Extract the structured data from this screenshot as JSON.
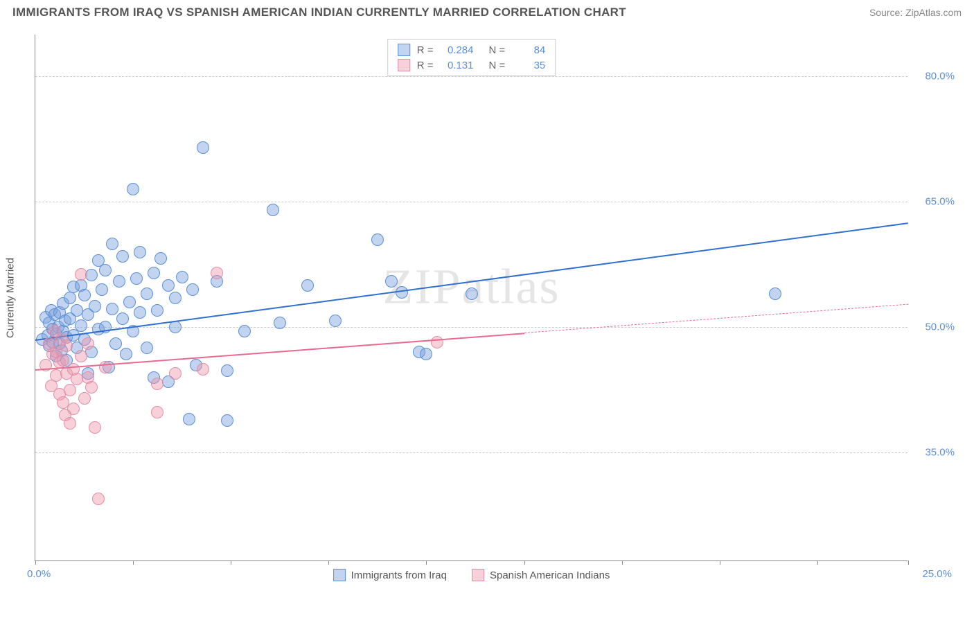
{
  "title": "IMMIGRANTS FROM IRAQ VS SPANISH AMERICAN INDIAN CURRENTLY MARRIED CORRELATION CHART",
  "source": "Source: ZipAtlas.com",
  "watermark": "ZIPatlas",
  "chart": {
    "type": "scatter",
    "background_color": "#ffffff",
    "grid_color": "#cccccc",
    "axis_color": "#888888",
    "y_axis_title": "Currently Married",
    "xlim": [
      0,
      25
    ],
    "ylim": [
      22,
      85
    ],
    "y_ticks": [
      {
        "v": 35.0,
        "label": "35.0%"
      },
      {
        "v": 50.0,
        "label": "50.0%"
      },
      {
        "v": 65.0,
        "label": "65.0%"
      },
      {
        "v": 80.0,
        "label": "80.0%"
      }
    ],
    "x_ticks": [
      0,
      2.8,
      5.6,
      8.4,
      11.2,
      14.0,
      16.8,
      19.6,
      22.4,
      25.0
    ],
    "x_origin_label": "0.0%",
    "x_max_label": "25.0%",
    "label_fontsize": 15,
    "label_color": "#5b8fd6",
    "point_radius": 9,
    "series": [
      {
        "id": "iraq",
        "name": "Immigrants from Iraq",
        "fill": "rgba(120,160,220,0.45)",
        "stroke": "#5b8fd6",
        "trend_color": "#2f6fcf",
        "trend_width": 2.5,
        "trend_dash": "solid",
        "trend_line": {
          "x1": 0,
          "y1": 48.5,
          "x2": 25,
          "y2": 62.5
        },
        "r_value": "0.284",
        "n_value": "84",
        "points": [
          [
            0.2,
            48.5
          ],
          [
            0.3,
            51.2
          ],
          [
            0.35,
            49.0
          ],
          [
            0.4,
            47.8
          ],
          [
            0.4,
            50.5
          ],
          [
            0.45,
            52.0
          ],
          [
            0.5,
            48.2
          ],
          [
            0.5,
            49.8
          ],
          [
            0.55,
            51.5
          ],
          [
            0.6,
            46.5
          ],
          [
            0.6,
            49.2
          ],
          [
            0.65,
            50.0
          ],
          [
            0.7,
            48.0
          ],
          [
            0.7,
            51.8
          ],
          [
            0.75,
            47.2
          ],
          [
            0.8,
            49.5
          ],
          [
            0.8,
            52.8
          ],
          [
            0.85,
            50.8
          ],
          [
            0.9,
            48.8
          ],
          [
            0.9,
            46.0
          ],
          [
            1.0,
            51.0
          ],
          [
            1.0,
            53.5
          ],
          [
            1.1,
            49.0
          ],
          [
            1.1,
            54.8
          ],
          [
            1.2,
            47.5
          ],
          [
            1.2,
            52.0
          ],
          [
            1.3,
            50.2
          ],
          [
            1.3,
            55.0
          ],
          [
            1.4,
            48.5
          ],
          [
            1.4,
            53.8
          ],
          [
            1.5,
            51.5
          ],
          [
            1.5,
            44.5
          ],
          [
            1.6,
            56.2
          ],
          [
            1.6,
            47.0
          ],
          [
            1.7,
            52.5
          ],
          [
            1.8,
            49.8
          ],
          [
            1.8,
            58.0
          ],
          [
            1.9,
            54.5
          ],
          [
            2.0,
            50.0
          ],
          [
            2.0,
            56.8
          ],
          [
            2.1,
            45.2
          ],
          [
            2.2,
            60.0
          ],
          [
            2.2,
            52.2
          ],
          [
            2.3,
            48.0
          ],
          [
            2.4,
            55.5
          ],
          [
            2.5,
            51.0
          ],
          [
            2.5,
            58.5
          ],
          [
            2.6,
            46.8
          ],
          [
            2.7,
            53.0
          ],
          [
            2.8,
            66.5
          ],
          [
            2.8,
            49.5
          ],
          [
            2.9,
            55.8
          ],
          [
            3.0,
            51.8
          ],
          [
            3.0,
            59.0
          ],
          [
            3.2,
            54.0
          ],
          [
            3.2,
            47.5
          ],
          [
            3.4,
            56.5
          ],
          [
            3.4,
            44.0
          ],
          [
            3.5,
            52.0
          ],
          [
            3.6,
            58.2
          ],
          [
            3.8,
            55.0
          ],
          [
            3.8,
            43.5
          ],
          [
            4.0,
            53.5
          ],
          [
            4.0,
            50.0
          ],
          [
            4.2,
            56.0
          ],
          [
            4.4,
            39.0
          ],
          [
            4.5,
            54.5
          ],
          [
            4.6,
            45.5
          ],
          [
            4.8,
            71.5
          ],
          [
            5.2,
            55.5
          ],
          [
            5.5,
            44.8
          ],
          [
            5.5,
            38.8
          ],
          [
            6.0,
            49.5
          ],
          [
            6.8,
            64.0
          ],
          [
            7.0,
            50.5
          ],
          [
            7.8,
            55.0
          ],
          [
            8.6,
            50.8
          ],
          [
            9.8,
            60.5
          ],
          [
            10.2,
            55.5
          ],
          [
            10.5,
            54.2
          ],
          [
            11.0,
            47.0
          ],
          [
            11.2,
            46.8
          ],
          [
            12.5,
            54.0
          ],
          [
            21.2,
            54.0
          ]
        ]
      },
      {
        "id": "sai",
        "name": "Spanish American Indians",
        "fill": "rgba(240,150,170,0.45)",
        "stroke": "#e08fa8",
        "trend_color": "#e86b8f",
        "trend_width": 2,
        "trend_dash": "solid_then_dashed",
        "trend_solid_until_x": 14.0,
        "trend_line": {
          "x1": 0,
          "y1": 45.0,
          "x2": 25,
          "y2": 52.8
        },
        "r_value": "0.131",
        "n_value": "35",
        "points": [
          [
            0.3,
            45.5
          ],
          [
            0.4,
            48.0
          ],
          [
            0.45,
            43.0
          ],
          [
            0.5,
            46.8
          ],
          [
            0.55,
            49.5
          ],
          [
            0.6,
            44.2
          ],
          [
            0.6,
            47.0
          ],
          [
            0.7,
            42.0
          ],
          [
            0.7,
            45.8
          ],
          [
            0.75,
            48.5
          ],
          [
            0.8,
            41.0
          ],
          [
            0.8,
            46.0
          ],
          [
            0.85,
            39.5
          ],
          [
            0.9,
            44.5
          ],
          [
            0.9,
            47.8
          ],
          [
            1.0,
            42.5
          ],
          [
            1.0,
            38.5
          ],
          [
            1.1,
            45.0
          ],
          [
            1.1,
            40.2
          ],
          [
            1.2,
            43.8
          ],
          [
            1.3,
            46.5
          ],
          [
            1.3,
            56.3
          ],
          [
            1.4,
            41.5
          ],
          [
            1.5,
            48.0
          ],
          [
            1.5,
            44.0
          ],
          [
            1.6,
            42.8
          ],
          [
            1.7,
            38.0
          ],
          [
            1.8,
            29.5
          ],
          [
            2.0,
            45.2
          ],
          [
            3.5,
            43.2
          ],
          [
            3.5,
            39.8
          ],
          [
            4.0,
            44.5
          ],
          [
            4.8,
            45.0
          ],
          [
            5.2,
            56.5
          ],
          [
            11.5,
            48.2
          ]
        ]
      }
    ],
    "legend_top": {
      "r_label": "R =",
      "n_label": "N ="
    }
  }
}
